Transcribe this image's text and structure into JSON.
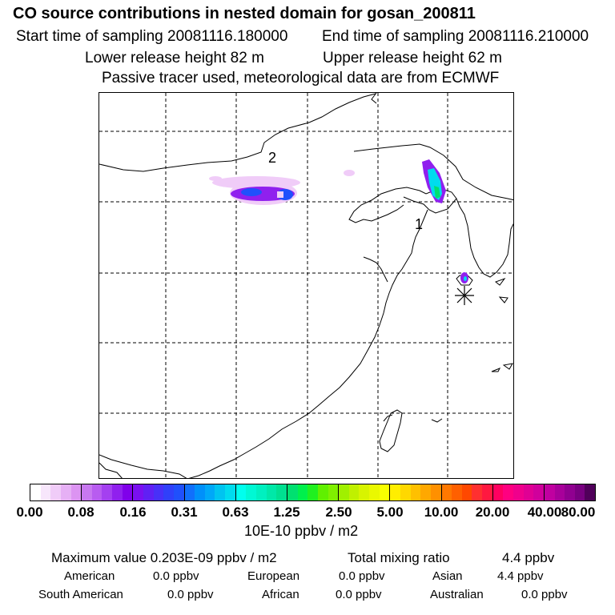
{
  "header": {
    "title": "CO  source contributions in nested domain for gosan_200811",
    "start_label": "Start time of sampling 20081116.180000",
    "end_label": "End time of sampling 20081116.210000",
    "lower_label": "Lower release height   82 m",
    "upper_label": "Upper release height   62 m",
    "info": "Passive tracer used, meteorological data are from ECMWF"
  },
  "map": {
    "region_labels": [
      "1",
      "2"
    ],
    "receptor_marker": "asterisk-icon"
  },
  "colorbar": {
    "ticks": [
      "0.00",
      "0.08",
      "0.16",
      "0.31",
      "0.63",
      "1.25",
      "2.50",
      "5.00",
      "10.00",
      "20.00",
      "40.00",
      "80.00"
    ],
    "unit": "10E-10 ppbv / m2",
    "colors": [
      [
        "#ffffff",
        "#f7e6fb",
        "#f0ccf8",
        "#e6b0f5",
        "#dc94f2"
      ],
      [
        "#c878f0",
        "#b85cf0",
        "#a440f0",
        "#9020ee",
        "#8000ea"
      ],
      [
        "#7a10f0",
        "#6020f4",
        "#4830f8",
        "#3040fa",
        "#2050fc"
      ],
      [
        "#1070fc",
        "#0090fa",
        "#00a8f8",
        "#00c4f0",
        "#00dcee"
      ],
      [
        "#00ffee",
        "#00f8d4",
        "#00f0c0",
        "#00e8a8",
        "#00e090"
      ],
      [
        "#00e070",
        "#00f04c",
        "#20f020",
        "#60f000",
        "#80f000"
      ],
      [
        "#a0f000",
        "#c0f000",
        "#d8f400",
        "#eaf800",
        "#f8ff00"
      ],
      [
        "#ffee00",
        "#ffd800",
        "#ffc000",
        "#ffa800",
        "#ff9000"
      ],
      [
        "#ff7800",
        "#ff6000",
        "#ff4800",
        "#ff3030",
        "#ff1840"
      ],
      [
        "#ff0060",
        "#ff0080",
        "#f0008c",
        "#e00094",
        "#d0009c"
      ],
      [
        "#c000a0",
        "#a8009a",
        "#900090",
        "#780080",
        "#50005a"
      ]
    ]
  },
  "stats": {
    "max_label": "Maximum value  0.203E-09 ppbv / m2",
    "total_label": "Total mixing ratio",
    "total_value": "4.4 ppbv",
    "american_label": "American",
    "american_value": "0.0 ppbv",
    "european_label": "European",
    "european_value": "0.0 ppbv",
    "asian_label": "Asian",
    "asian_value": "4.4 ppbv",
    "south_american_label": "South American",
    "south_american_value": "0.0 ppbv",
    "african_label": "African",
    "african_value": "0.0 ppbv",
    "australian_label": "Australian",
    "australian_value": "0.0 ppbv"
  }
}
